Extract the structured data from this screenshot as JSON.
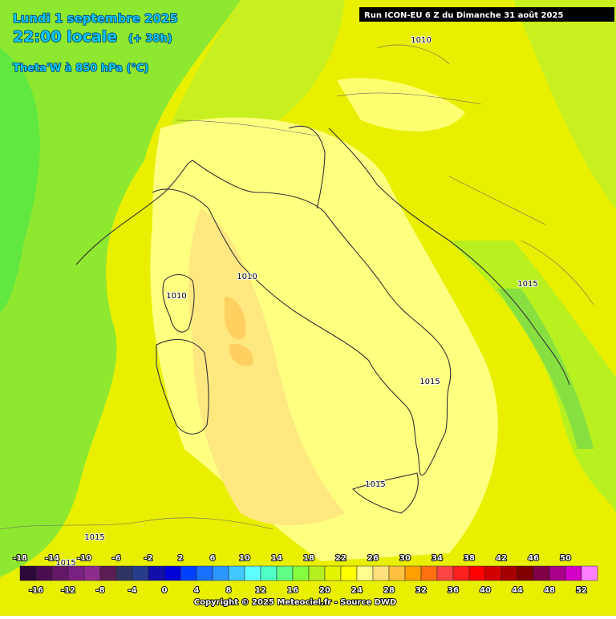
{
  "header": {
    "date": "Lundi 1 septembre 2025",
    "time": "22:00 locale",
    "lead": "(+ 38h)",
    "parameter": "Theta'W à 850 hPa (°C)"
  },
  "run_label": "Run ICON-EU 6 Z du Dimanche 31 août 2025",
  "isobar_labels": [
    "1010",
    "1010",
    "1010",
    "1015",
    "1015",
    "1015",
    "1015",
    "1015"
  ],
  "colorbar": {
    "ticks": [
      -18,
      -16,
      -14,
      -12,
      -10,
      -8,
      -6,
      -4,
      -2,
      0,
      2,
      4,
      6,
      8,
      10,
      12,
      14,
      16,
      18,
      20,
      22,
      24,
      26,
      28,
      30,
      32,
      34,
      36,
      38,
      40,
      42,
      44,
      46,
      48,
      50,
      52
    ],
    "colors": [
      "#2a0838",
      "#4a0e50",
      "#641868",
      "#7a2080",
      "#8c2c8c",
      "#5c1c54",
      "#303462",
      "#283c8c",
      "#1010a8",
      "#0000d8",
      "#0040ff",
      "#1870ff",
      "#2c98ff",
      "#40c8ff",
      "#60ffff",
      "#50ffc8",
      "#60ff88",
      "#84ff40",
      "#b4f020",
      "#e4f400",
      "#ffff00",
      "#ffff90",
      "#ffe07c",
      "#ffc040",
      "#ffa000",
      "#ff7010",
      "#ff4444",
      "#ff2020",
      "#ff0000",
      "#d40000",
      "#a80000",
      "#800000",
      "#800048",
      "#a80088",
      "#d400c8",
      "#ff80ff"
    ]
  },
  "copyright": "Copyright © 2025 Meteociel.fr - Source DWD"
}
